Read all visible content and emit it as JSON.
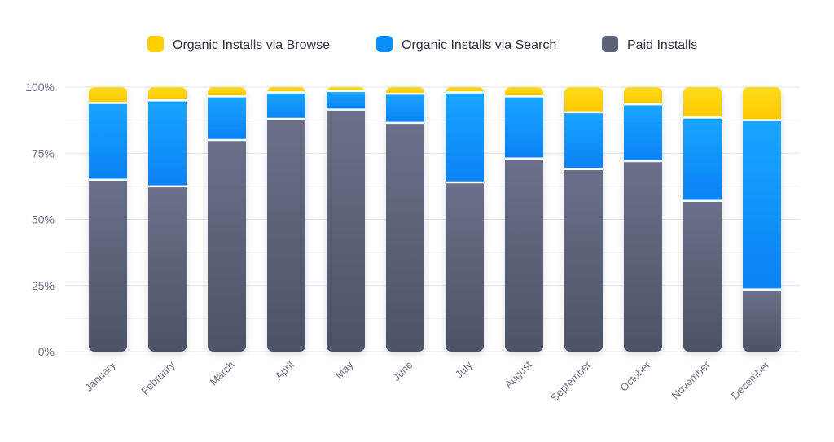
{
  "chart_data": {
    "type": "bar",
    "stacked": true,
    "normalized": true,
    "categories": [
      "January",
      "February",
      "March",
      "April",
      "May",
      "June",
      "July",
      "August",
      "September",
      "October",
      "November",
      "December"
    ],
    "series": [
      {
        "name": "Paid Installs",
        "color": "#5c6379",
        "values": [
          65,
          62.5,
          80,
          88,
          91.5,
          86.5,
          64,
          73,
          69,
          72,
          57,
          23.5
        ]
      },
      {
        "name": "Organic Installs via Search",
        "color": "#0a8ffb",
        "values": [
          29,
          32.5,
          16.5,
          10,
          7,
          11,
          34,
          23.5,
          21.5,
          21.5,
          31.5,
          64
        ]
      },
      {
        "name": "Organic Installs via Browse",
        "color": "#ffd000",
        "values": [
          6,
          5,
          3.5,
          2,
          1.5,
          2.5,
          2,
          3.5,
          9.5,
          6.5,
          11.5,
          12.5
        ]
      }
    ],
    "yticks": [
      "0%",
      "25%",
      "50%",
      "75%",
      "100%"
    ],
    "ylim": [
      0,
      100
    ],
    "legend_position": "top",
    "legend_order": [
      "Organic Installs via Browse",
      "Organic Installs via Search",
      "Paid Installs"
    ],
    "grid": true
  }
}
